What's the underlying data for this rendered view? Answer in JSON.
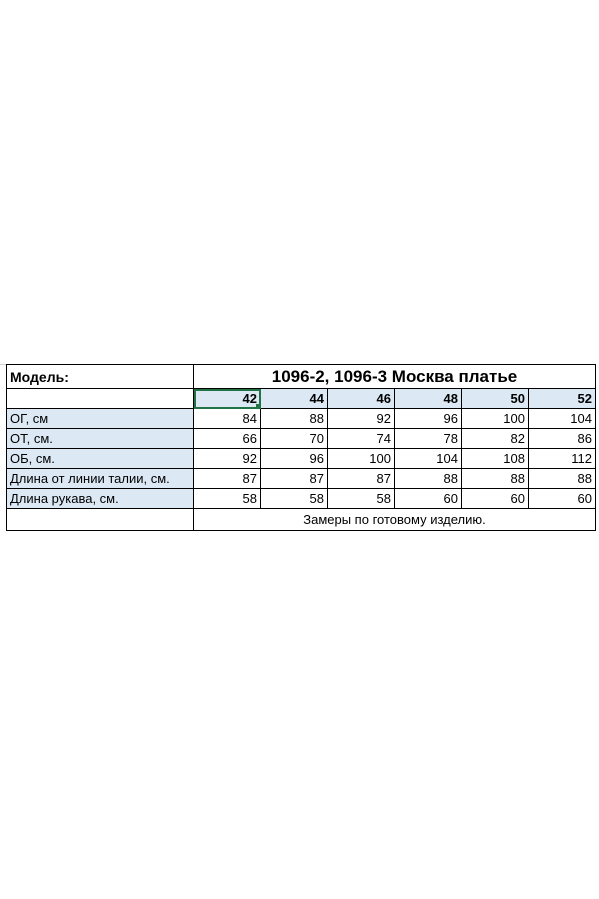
{
  "header": {
    "model_label": "Модель:",
    "title": "1096-2, 1096-3 Москва платье"
  },
  "sizes": [
    "42",
    "44",
    "46",
    "48",
    "50",
    "52"
  ],
  "rows": [
    {
      "label": "ОГ, см",
      "values": [
        "84",
        "88",
        "92",
        "96",
        "100",
        "104"
      ]
    },
    {
      "label": "ОТ, см.",
      "values": [
        "66",
        "70",
        "74",
        "78",
        "82",
        "86"
      ]
    },
    {
      "label": "ОБ, см.",
      "values": [
        "92",
        "96",
        "100",
        "104",
        "108",
        "112"
      ]
    },
    {
      "label": "Длина от линии талии, см.",
      "values": [
        "87",
        "87",
        "87",
        "88",
        "88",
        "88"
      ]
    },
    {
      "label": "Длина рукава, см.",
      "values": [
        "58",
        "58",
        "58",
        "60",
        "60",
        "60"
      ]
    }
  ],
  "note": "Замеры по готовому изделию.",
  "colors": {
    "shade": "#dce9f5",
    "selection": "#217346"
  }
}
